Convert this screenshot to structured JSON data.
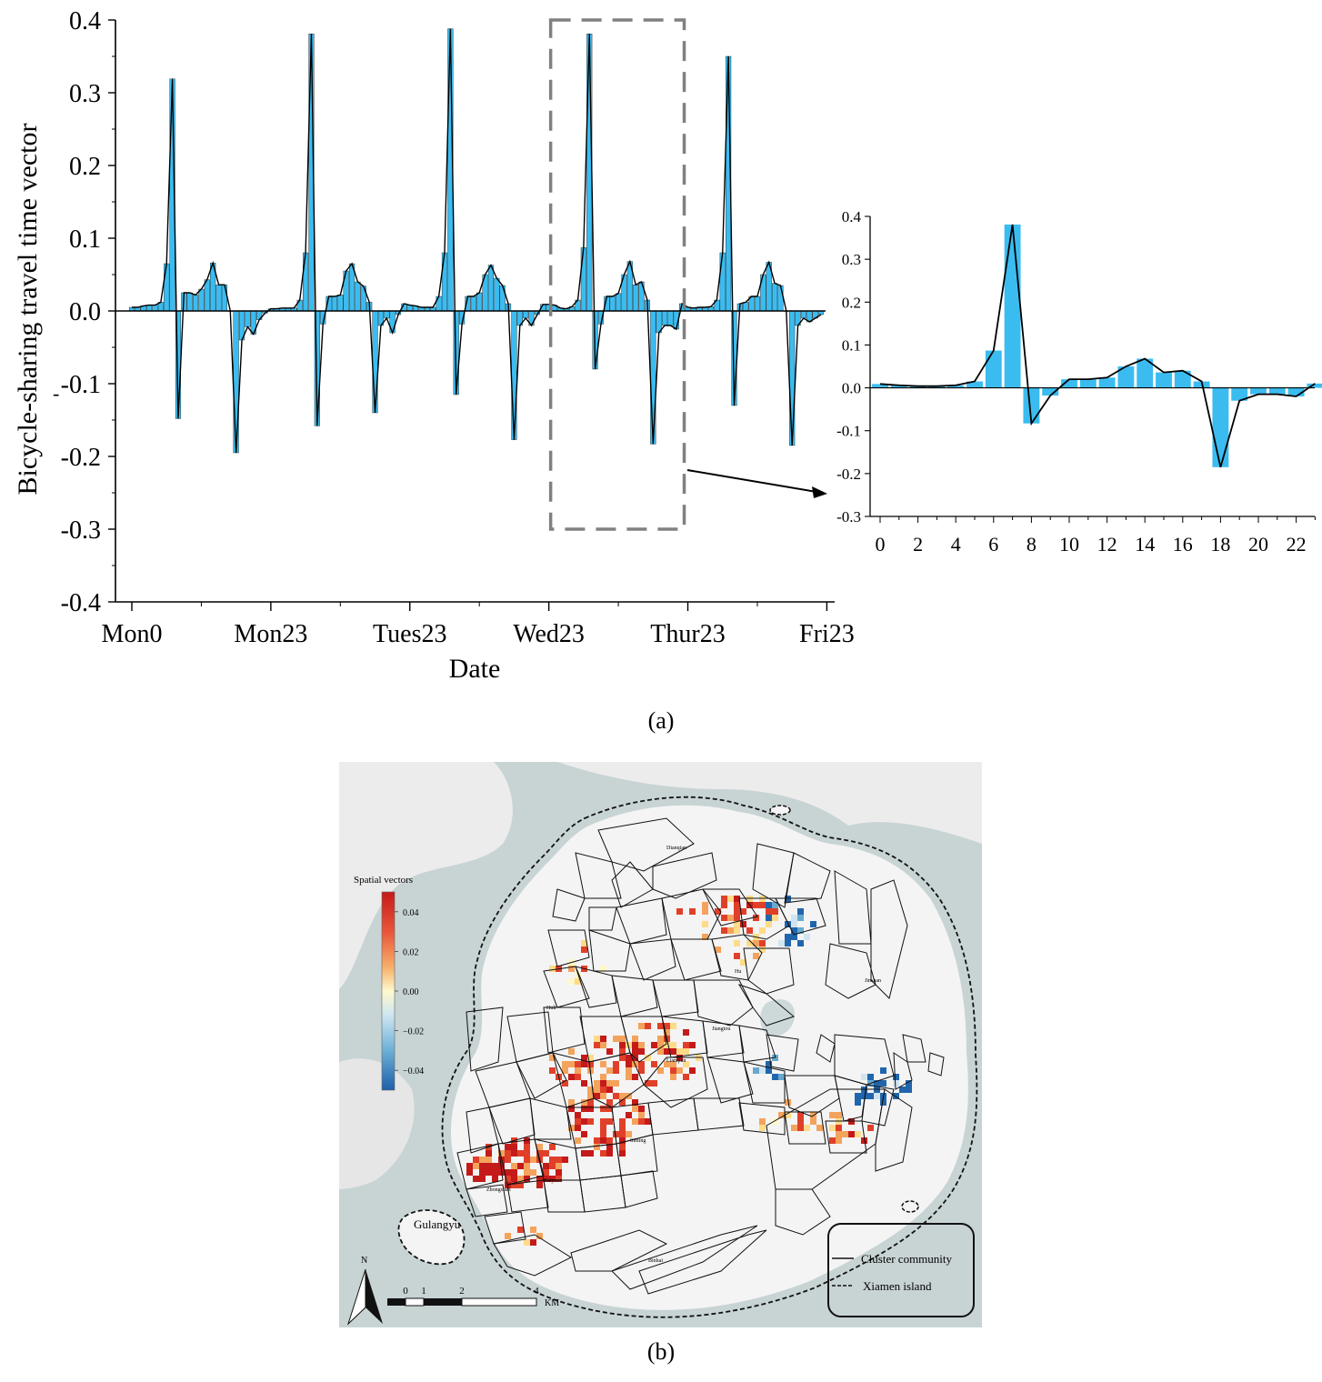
{
  "panel_labels": {
    "a": "(a)",
    "b": "(b)"
  },
  "chart_data": [
    {
      "id": "weekly",
      "type": "bar",
      "title": "",
      "xlabel": "Date",
      "ylabel": "Bicycle-sharing travel time vector",
      "ylim": [
        -0.4,
        0.4
      ],
      "yticks": [
        "0.4",
        "0.3",
        "0.2",
        "0.1",
        "0.0",
        "-0.1",
        "-0.2",
        "-0.3",
        "-0.4"
      ],
      "ytick_values": [
        0.4,
        0.3,
        0.2,
        0.1,
        0.0,
        -0.1,
        -0.2,
        -0.3,
        -0.4
      ],
      "xticks": [
        "Mon0",
        "Mon23",
        "Tues23",
        "Wed23",
        "Thur23",
        "Fri23"
      ],
      "xtick_hours": [
        0,
        24,
        48,
        72,
        96,
        120
      ],
      "daily_profiles": [
        [
          0.005,
          0.005,
          0.007,
          0.008,
          0.008,
          0.012,
          0.065,
          0.319,
          -0.148,
          0.025,
          0.025,
          0.022,
          0.03,
          0.043,
          0.066,
          0.036,
          0.036,
          0.0,
          -0.195,
          -0.04,
          -0.022,
          -0.032,
          -0.012,
          -0.003
        ],
        [
          0.003,
          0.003,
          0.004,
          0.004,
          0.004,
          0.015,
          0.08,
          0.381,
          -0.158,
          -0.018,
          0.02,
          0.02,
          0.022,
          0.055,
          0.065,
          0.04,
          0.034,
          0.012,
          -0.14,
          -0.02,
          -0.01,
          -0.03,
          -0.005,
          0.01
        ],
        [
          0.008,
          0.007,
          0.005,
          0.005,
          0.005,
          0.02,
          0.08,
          0.388,
          -0.115,
          -0.018,
          0.02,
          0.02,
          0.025,
          0.05,
          0.063,
          0.045,
          0.035,
          0.01,
          -0.177,
          -0.02,
          -0.01,
          -0.02,
          -0.005,
          0.009
        ],
        [
          0.009,
          0.008,
          0.004,
          0.003,
          0.006,
          0.015,
          0.087,
          0.381,
          -0.08,
          -0.018,
          0.02,
          0.02,
          0.024,
          0.05,
          0.068,
          0.036,
          0.04,
          0.015,
          -0.183,
          -0.03,
          -0.02,
          -0.02,
          -0.025,
          0.01
        ],
        [
          0.005,
          0.004,
          0.005,
          0.005,
          0.006,
          0.015,
          0.08,
          0.35,
          -0.13,
          0.01,
          0.012,
          0.02,
          0.02,
          0.05,
          0.067,
          0.038,
          0.035,
          0.0,
          -0.185,
          -0.02,
          -0.01,
          -0.015,
          -0.01,
          -0.005
        ]
      ],
      "annotations": [
        "zoom-box Wed23–Thur23",
        "arrow to hourly inset"
      ]
    },
    {
      "id": "hourly",
      "type": "bar",
      "xlabel": "",
      "ylabel": "",
      "ylim": [
        -0.3,
        0.4
      ],
      "yticks": [
        "0.4",
        "0.3",
        "0.2",
        "0.1",
        "0.0",
        "-0.1",
        "-0.2",
        "-0.3"
      ],
      "ytick_values": [
        0.4,
        0.3,
        0.2,
        0.1,
        0.0,
        -0.1,
        -0.2,
        -0.3
      ],
      "xticks": [
        "0",
        "2",
        "4",
        "6",
        "8",
        "10",
        "12",
        "14",
        "16",
        "18",
        "20",
        "22"
      ],
      "xtick_values": [
        0,
        2,
        4,
        6,
        8,
        10,
        12,
        14,
        16,
        18,
        20,
        22
      ],
      "x": [
        0,
        1,
        2,
        3,
        4,
        5,
        6,
        7,
        8,
        9,
        10,
        11,
        12,
        13,
        14,
        15,
        16,
        17,
        18,
        19,
        20,
        21,
        22,
        23
      ],
      "values": [
        0.009,
        0.006,
        0.004,
        0.004,
        0.006,
        0.015,
        0.087,
        0.381,
        -0.083,
        -0.018,
        0.02,
        0.02,
        0.024,
        0.05,
        0.068,
        0.036,
        0.04,
        0.015,
        -0.185,
        -0.03,
        -0.015,
        -0.015,
        -0.02,
        0.01
      ]
    },
    {
      "id": "spatial-map",
      "type": "heatmap",
      "title": "",
      "legend_title": "Spatial vectors",
      "colorbar_ticks": [
        "0.04",
        "0.02",
        "0.00",
        "−0.02",
        "−0.04"
      ],
      "colorbar_values": [
        0.04,
        0.02,
        0.0,
        -0.02,
        -0.04
      ],
      "colorbar_range": [
        -0.05,
        0.05
      ],
      "place_labels": [
        "Gulangyu",
        "Dianqian",
        "Hu",
        "Jinshan",
        "Huli",
        "Jiangtou",
        "Lianqian",
        "Siming",
        "Kaiyuan",
        "Zhongshan",
        "Binhai"
      ],
      "scale_bar": {
        "ticks": [
          "0",
          "1",
          "2",
          "4"
        ],
        "unit": "KM"
      },
      "north_arrow": "N",
      "legend_items": [
        {
          "style": "solid",
          "label": "Cluster community"
        },
        {
          "style": "dashed",
          "label": "Xiamen island"
        }
      ]
    }
  ],
  "colors": {
    "bar": "#3bbcf0",
    "line": "#000000",
    "sea": "#c8d3d4",
    "land": "#f4f4f4",
    "zoom_box": "#808080",
    "cmap": [
      "#2166ac",
      "#67a9cf",
      "#d1e5f0",
      "#fff8c8",
      "#fddb88",
      "#f4a35c",
      "#e0402a",
      "#c51a1a"
    ]
  }
}
